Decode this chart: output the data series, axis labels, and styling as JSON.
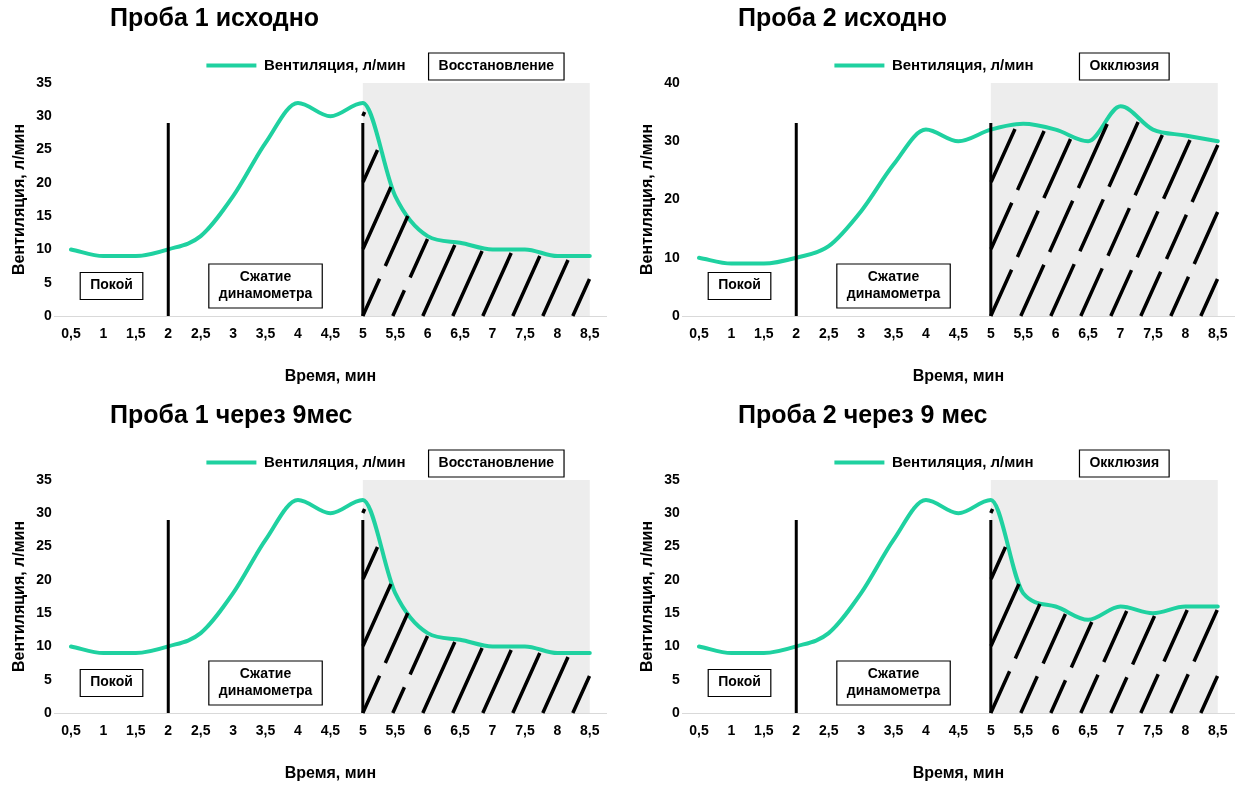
{
  "chart_data": [
    {
      "type": "line",
      "title": "Проба 1 исходно",
      "xlabel": "Время, мин",
      "ylabel": "Вентиляция, л/мин",
      "legend": "top",
      "marker": "none",
      "grid": false,
      "x": [
        0.5,
        1,
        1.5,
        2,
        2.5,
        3,
        3.5,
        4,
        4.5,
        5,
        5.5,
        6,
        6.5,
        7,
        7.5,
        8,
        8.5
      ],
      "series": [
        {
          "name": "Вентиляция, л/мин",
          "color": "#1fd1a0",
          "values": [
            10,
            9,
            9,
            10,
            12,
            18,
            26,
            32,
            30,
            32,
            18,
            12,
            11,
            10,
            10,
            9,
            9
          ]
        }
      ],
      "xlim": [
        0.25,
        8.75
      ],
      "xticks": [
        {
          "value": 0.5,
          "label": "0,5"
        },
        1,
        {
          "value": 1.5,
          "label": "1,5"
        },
        2,
        {
          "value": 2.5,
          "label": "2,5"
        },
        3,
        {
          "value": 3.5,
          "label": "3,5"
        },
        4,
        {
          "value": 4.5,
          "label": "4,5"
        },
        5,
        {
          "value": 5.5,
          "label": "5,5"
        },
        6,
        {
          "value": 6.5,
          "label": "6,5"
        },
        7,
        {
          "value": 7.5,
          "label": "7,5"
        },
        8,
        {
          "value": 8.5,
          "label": "8,5"
        }
      ],
      "ylim": [
        0,
        35
      ],
      "yticks": [
        0,
        5,
        10,
        15,
        20,
        25,
        30,
        35
      ],
      "ref_lines": [
        {
          "axis": "x",
          "value": 2
        },
        {
          "axis": "x",
          "value": 5
        }
      ],
      "annotations": [
        "Покой",
        "Сжатие\nдинамометра"
      ],
      "bands": [
        {
          "axis": "x",
          "from": 5,
          "to": 8.5,
          "label": "Восстановление",
          "color": "#000000"
        }
      ]
    },
    {
      "type": "line",
      "title": "Проба 2 исходно",
      "xlabel": "Время, мин",
      "ylabel": "Вентиляция, л/мин",
      "legend": "top",
      "marker": "none",
      "grid": false,
      "x": [
        0.5,
        1,
        1.5,
        2,
        2.5,
        3,
        3.5,
        4,
        4.5,
        5,
        5.5,
        6,
        6.5,
        7,
        7.5,
        8,
        8.5
      ],
      "series": [
        {
          "name": "Вентиляция, л/мин",
          "color": "#1fd1a0",
          "values": [
            10,
            9,
            9,
            10,
            12,
            18,
            26,
            32,
            30,
            32,
            33,
            32,
            30,
            36,
            32,
            31,
            30
          ]
        }
      ],
      "xlim": [
        0.25,
        8.75
      ],
      "xticks": [
        {
          "value": 0.5,
          "label": "0,5"
        },
        1,
        {
          "value": 1.5,
          "label": "1,5"
        },
        2,
        {
          "value": 2.5,
          "label": "2,5"
        },
        3,
        {
          "value": 3.5,
          "label": "3,5"
        },
        4,
        {
          "value": 4.5,
          "label": "4,5"
        },
        5,
        {
          "value": 5.5,
          "label": "5,5"
        },
        6,
        {
          "value": 6.5,
          "label": "6,5"
        },
        7,
        {
          "value": 7.5,
          "label": "7,5"
        },
        8,
        {
          "value": 8.5,
          "label": "8,5"
        }
      ],
      "ylim": [
        0,
        40
      ],
      "yticks": [
        0,
        10,
        20,
        30,
        40
      ],
      "ref_lines": [
        {
          "axis": "x",
          "value": 2
        },
        {
          "axis": "x",
          "value": 5
        }
      ],
      "annotations": [
        "Покой",
        "Сжатие\nдинамометра"
      ],
      "bands": [
        {
          "axis": "x",
          "from": 5,
          "to": 8.5,
          "label": "Окклюзия",
          "color": "#000000"
        }
      ]
    },
    {
      "type": "line",
      "title": "Проба 1 через 9мес",
      "xlabel": "Время, мин",
      "ylabel": "Вентиляция, л/мин",
      "legend": "top",
      "marker": "none",
      "grid": false,
      "x": [
        0.5,
        1,
        1.5,
        2,
        2.5,
        3,
        3.5,
        4,
        4.5,
        5,
        5.5,
        6,
        6.5,
        7,
        7.5,
        8,
        8.5
      ],
      "series": [
        {
          "name": "Вентиляция, л/мин",
          "color": "#1fd1a0",
          "values": [
            10,
            9,
            9,
            10,
            12,
            18,
            26,
            32,
            30,
            32,
            18,
            12,
            11,
            10,
            10,
            9,
            9
          ]
        }
      ],
      "xlim": [
        0.25,
        8.75
      ],
      "xticks": [
        {
          "value": 0.5,
          "label": "0,5"
        },
        1,
        {
          "value": 1.5,
          "label": "1,5"
        },
        2,
        {
          "value": 2.5,
          "label": "2,5"
        },
        3,
        {
          "value": 3.5,
          "label": "3,5"
        },
        4,
        {
          "value": 4.5,
          "label": "4,5"
        },
        5,
        {
          "value": 5.5,
          "label": "5,5"
        },
        6,
        {
          "value": 6.5,
          "label": "6,5"
        },
        7,
        {
          "value": 7.5,
          "label": "7,5"
        },
        8,
        {
          "value": 8.5,
          "label": "8,5"
        }
      ],
      "ylim": [
        0,
        35
      ],
      "yticks": [
        0,
        5,
        10,
        15,
        20,
        25,
        30,
        35
      ],
      "ref_lines": [
        {
          "axis": "x",
          "value": 2
        },
        {
          "axis": "x",
          "value": 5
        }
      ],
      "annotations": [
        "Покой",
        "Сжатие\nдинамометра"
      ],
      "bands": [
        {
          "axis": "x",
          "from": 5,
          "to": 8.5,
          "label": "Восстановление",
          "color": "#000000"
        }
      ]
    },
    {
      "type": "line",
      "title": "Проба 2 через 9 мес",
      "xlabel": "Время, мин",
      "ylabel": "Вентиляция, л/мин",
      "legend": "top",
      "marker": "none",
      "grid": false,
      "x": [
        0.5,
        1,
        1.5,
        2,
        2.5,
        3,
        3.5,
        4,
        4.5,
        5,
        5.5,
        6,
        6.5,
        7,
        7.5,
        8,
        8.5
      ],
      "series": [
        {
          "name": "Вентиляция, л/мин",
          "color": "#1fd1a0",
          "values": [
            10,
            9,
            9,
            10,
            12,
            18,
            26,
            32,
            30,
            32,
            18,
            16,
            14,
            16,
            15,
            16,
            16
          ]
        }
      ],
      "xlim": [
        0.25,
        8.75
      ],
      "xticks": [
        {
          "value": 0.5,
          "label": "0,5"
        },
        1,
        {
          "value": 1.5,
          "label": "1,5"
        },
        2,
        {
          "value": 2.5,
          "label": "2,5"
        },
        3,
        {
          "value": 3.5,
          "label": "3,5"
        },
        4,
        {
          "value": 4.5,
          "label": "4,5"
        },
        5,
        {
          "value": 5.5,
          "label": "5,5"
        },
        6,
        {
          "value": 6.5,
          "label": "6,5"
        },
        7,
        {
          "value": 7.5,
          "label": "7,5"
        },
        8,
        {
          "value": 8.5,
          "label": "8,5"
        }
      ],
      "ylim": [
        0,
        35
      ],
      "yticks": [
        0,
        5,
        10,
        15,
        20,
        25,
        30,
        35
      ],
      "ref_lines": [
        {
          "axis": "x",
          "value": 2
        },
        {
          "axis": "x",
          "value": 5
        }
      ],
      "annotations": [
        "Покой",
        "Сжатие\nдинамометра"
      ],
      "bands": [
        {
          "axis": "x",
          "from": 5,
          "to": 8.5,
          "label": "Окклюзия",
          "color": "#000000"
        }
      ]
    }
  ]
}
